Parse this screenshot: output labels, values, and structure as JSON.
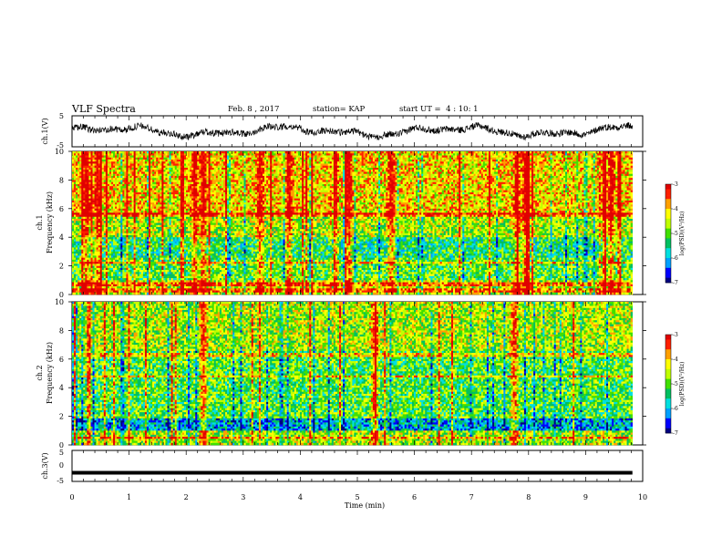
{
  "header": {
    "title": "VLF Spectra",
    "date": "Feb. 8 , 2017",
    "station": "station= KAP",
    "start": "start UT =  4 : 10: 1"
  },
  "chart_data": [
    {
      "type": "line",
      "id": "waveform-ch1",
      "ylabel": "ch.1(V)",
      "ylim": [
        -5,
        5
      ],
      "ytick_labels": [
        "5",
        "-5"
      ],
      "xlim": [
        0,
        10
      ],
      "x_extent": [
        0,
        9.82
      ],
      "description_level": [
        -1.5,
        1.5
      ],
      "line_color": "#000000"
    },
    {
      "type": "heatmap",
      "id": "spectrogram-ch1",
      "ylabel": "ch.1\nFrequency (kHz)",
      "ylabel_line1": "ch.1",
      "ylabel_line2": "Frequency (kHz)",
      "ylim": [
        0,
        10
      ],
      "ytick_labels": [
        "0",
        "2",
        "4",
        "6",
        "8",
        "10"
      ],
      "xlim": [
        0,
        10
      ],
      "x_extent": [
        0,
        9.82
      ],
      "hot_bands_min": [
        0.25,
        0.45,
        2.15,
        2.3,
        3.3,
        3.8,
        4.6,
        4.85,
        5.6,
        7.8,
        7.95,
        9.3,
        9.45
      ],
      "horizontal_lines_khz": [
        0.3,
        0.7,
        2.2,
        5.6
      ],
      "colorbar": {
        "label": "log(PSD)(V²/Hz)",
        "range": [
          -7,
          -3
        ],
        "tick_labels": [
          "-3",
          "-4",
          "-5",
          "-6",
          "-7"
        ]
      }
    },
    {
      "type": "heatmap",
      "id": "spectrogram-ch2",
      "ylabel": "ch.2\nFrequency (kHz)",
      "ylabel_line1": "ch.2",
      "ylabel_line2": "Frequency (kHz)",
      "ylim": [
        0,
        10
      ],
      "ytick_labels": [
        "0",
        "2",
        "4",
        "6",
        "8",
        "10"
      ],
      "xlim": [
        0,
        10
      ],
      "x_extent": [
        0,
        9.82
      ],
      "hot_bands_min": [
        2.3,
        5.3,
        7.75
      ],
      "horizontal_lines_khz": [
        0.5,
        1.9,
        4.8,
        6.3
      ],
      "colorbar": {
        "label": "log(PSD)(V²/Hz)",
        "range": [
          -7,
          -3
        ],
        "tick_labels": [
          "-3",
          "-4",
          "-5",
          "-6",
          "-7"
        ]
      }
    },
    {
      "type": "line",
      "id": "waveform-ch3",
      "ylabel": "ch.3(V)",
      "ylim": [
        -5,
        5
      ],
      "ytick_labels": [
        "5",
        "0",
        "-5"
      ],
      "xlim": [
        0,
        10
      ],
      "x_extent": [
        0,
        9.82
      ],
      "constant_level": -2.2,
      "line_color": "#000000"
    }
  ],
  "x_axis": {
    "label": "Time (min)",
    "tick_labels": [
      "0",
      "1",
      "2",
      "3",
      "4",
      "5",
      "6",
      "7",
      "8",
      "9",
      "10"
    ]
  },
  "colors": {
    "palette": [
      "#000080",
      "#0000ff",
      "#00a0ff",
      "#00e0e0",
      "#00c060",
      "#40e000",
      "#c0ff00",
      "#ffff00",
      "#ffa000",
      "#ff2000",
      "#e00000"
    ]
  }
}
